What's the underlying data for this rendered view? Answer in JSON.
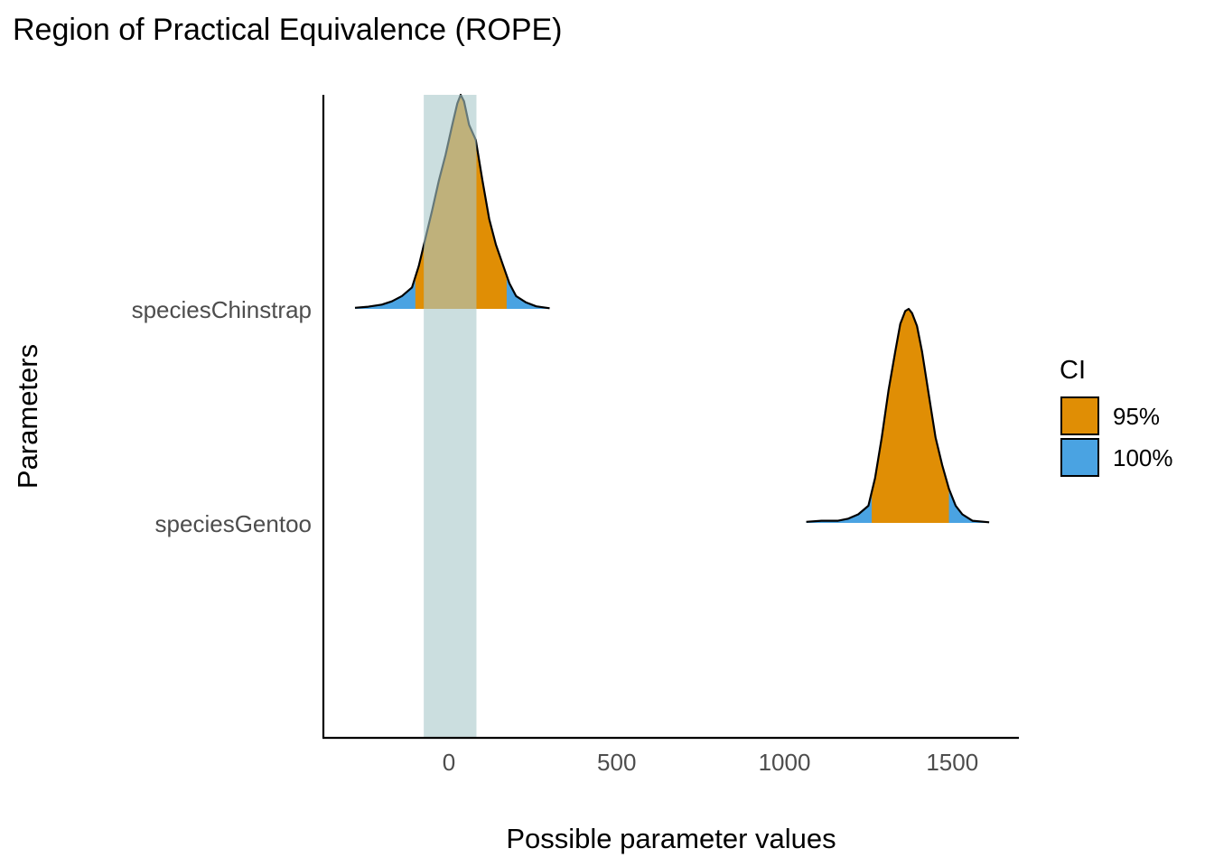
{
  "chart_data": {
    "type": "area",
    "title": "Region of Practical Equivalence (ROPE)",
    "xlabel": "Possible parameter values",
    "ylabel": "Parameters",
    "xlim": [
      -370,
      1700
    ],
    "x_ticks": [
      0,
      500,
      1000,
      1500
    ],
    "categories": [
      "speciesChinstrap",
      "speciesGentoo"
    ],
    "rope": {
      "low": -75,
      "high": 82,
      "color": "#a9c8ca"
    },
    "legend": {
      "title": "CI",
      "placement": "right",
      "entries": [
        {
          "label": "95%",
          "color": "#e08e05"
        },
        {
          "label": "100%",
          "color": "#4aa3e2"
        }
      ]
    },
    "grid": false,
    "series": [
      {
        "parameter": "speciesChinstrap",
        "range_100": [
          -280,
          300
        ],
        "ci95": [
          -100,
          172
        ],
        "density": [
          [
            -280,
            0.005
          ],
          [
            -240,
            0.01
          ],
          [
            -200,
            0.02
          ],
          [
            -170,
            0.035
          ],
          [
            -140,
            0.06
          ],
          [
            -110,
            0.1
          ],
          [
            -90,
            0.2
          ],
          [
            -70,
            0.33
          ],
          [
            -50,
            0.46
          ],
          [
            -30,
            0.6
          ],
          [
            -10,
            0.72
          ],
          [
            10,
            0.86
          ],
          [
            25,
            0.96
          ],
          [
            35,
            1.0
          ],
          [
            45,
            0.97
          ],
          [
            60,
            0.86
          ],
          [
            80,
            0.79
          ],
          [
            100,
            0.6
          ],
          [
            120,
            0.42
          ],
          [
            140,
            0.3
          ],
          [
            160,
            0.21
          ],
          [
            180,
            0.12
          ],
          [
            200,
            0.06
          ],
          [
            230,
            0.03
          ],
          [
            260,
            0.012
          ],
          [
            300,
            0.003
          ]
        ]
      },
      {
        "parameter": "speciesGentoo",
        "range_100": [
          1065,
          1610
        ],
        "ci95": [
          1260,
          1490
        ],
        "density": [
          [
            1065,
            0.005
          ],
          [
            1110,
            0.01
          ],
          [
            1160,
            0.01
          ],
          [
            1190,
            0.02
          ],
          [
            1220,
            0.04
          ],
          [
            1250,
            0.08
          ],
          [
            1270,
            0.21
          ],
          [
            1290,
            0.4
          ],
          [
            1310,
            0.62
          ],
          [
            1330,
            0.8
          ],
          [
            1345,
            0.93
          ],
          [
            1360,
            0.99
          ],
          [
            1370,
            1.0
          ],
          [
            1380,
            0.98
          ],
          [
            1395,
            0.92
          ],
          [
            1410,
            0.8
          ],
          [
            1430,
            0.6
          ],
          [
            1450,
            0.4
          ],
          [
            1470,
            0.27
          ],
          [
            1490,
            0.16
          ],
          [
            1510,
            0.08
          ],
          [
            1530,
            0.04
          ],
          [
            1560,
            0.01
          ],
          [
            1610,
            0.003
          ]
        ]
      }
    ]
  }
}
